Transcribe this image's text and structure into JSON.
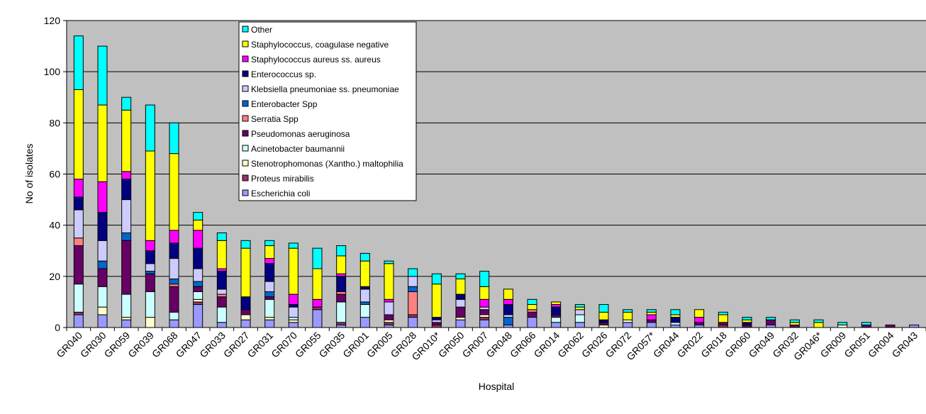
{
  "chart_data": {
    "type": "bar",
    "stacked": true,
    "xlabel": "Hospital",
    "ylabel": "No of isolates",
    "ylim": [
      0,
      120
    ],
    "yticks": [
      0,
      20,
      40,
      60,
      80,
      100,
      120
    ],
    "grid": true,
    "legend_position": "top-center",
    "categories": [
      "GR040",
      "GR030",
      "GR059",
      "GR039",
      "GR068",
      "GR047",
      "GR033",
      "GR027",
      "GR031",
      "GR070",
      "GR055",
      "GR035",
      "GR001",
      "GR005",
      "GR028",
      "GR010*",
      "GR050",
      "GR007",
      "GR048",
      "GR066",
      "GR014",
      "GR062",
      "GR026",
      "GR072",
      "GR057*",
      "GR044",
      "GR022",
      "GR018",
      "GR060",
      "GR049",
      "GR032",
      "GR046*",
      "GR009",
      "GR051",
      "GR004",
      "GR043"
    ],
    "series": [
      {
        "name": "Escherichia coli",
        "color": "#9999ff",
        "values": [
          5,
          5,
          3,
          0,
          3,
          9,
          2,
          3,
          3,
          2,
          7,
          1,
          4,
          1,
          4,
          0,
          3,
          3,
          1,
          4,
          2,
          2,
          0,
          2,
          2,
          1,
          1,
          0,
          0,
          1,
          0,
          0,
          0,
          0,
          0,
          1
        ]
      },
      {
        "name": "Proteus mirabilis",
        "color": "#993366",
        "values": [
          1,
          0,
          0,
          0,
          0,
          1,
          0,
          0,
          0,
          0,
          1,
          1,
          0,
          1,
          1,
          1,
          0,
          1,
          0,
          0,
          0,
          0,
          0,
          0,
          0,
          0,
          0,
          1,
          0,
          0,
          0,
          0,
          0,
          0,
          0,
          0
        ]
      },
      {
        "name": "Stenotrophomonas (Xantho.) maltophilia",
        "color": "#ffffcc",
        "values": [
          0,
          3,
          1,
          4,
          0,
          1,
          0,
          2,
          1,
          1,
          0,
          0,
          0,
          1,
          0,
          0,
          1,
          1,
          0,
          0,
          0,
          0,
          1,
          1,
          0,
          0,
          0,
          0,
          0,
          0,
          0,
          0,
          1,
          0,
          0,
          0
        ]
      },
      {
        "name": "Acinetobacter baumannii",
        "color": "#ccffff",
        "values": [
          11,
          8,
          9,
          10,
          3,
          3,
          6,
          0,
          7,
          1,
          0,
          8,
          5,
          0,
          0,
          0,
          0,
          0,
          0,
          0,
          2,
          3,
          0,
          0,
          0,
          1,
          0,
          0,
          0,
          0,
          0,
          0,
          0,
          0,
          0,
          0
        ]
      },
      {
        "name": "Pseudomonas aeruginosa",
        "color": "#660066",
        "values": [
          15,
          7,
          21,
          7,
          10,
          2,
          4,
          2,
          1,
          0,
          0,
          3,
          0,
          2,
          0,
          1,
          4,
          2,
          0,
          2,
          1,
          0,
          1,
          0,
          1,
          0,
          1,
          1,
          1,
          2,
          1,
          0,
          0,
          1,
          1,
          0
        ]
      },
      {
        "name": "Serratia Spp",
        "color": "#ff8080",
        "values": [
          3,
          0,
          0,
          0,
          1,
          0,
          1,
          0,
          0,
          0,
          0,
          1,
          0,
          0,
          9,
          0,
          0,
          0,
          0,
          1,
          0,
          0,
          0,
          0,
          0,
          0,
          0,
          0,
          0,
          0,
          0,
          0,
          0,
          0,
          0,
          0
        ]
      },
      {
        "name": "Enterobacter Spp",
        "color": "#0066cc",
        "values": [
          0,
          3,
          3,
          1,
          2,
          2,
          0,
          0,
          2,
          0,
          0,
          0,
          1,
          0,
          2,
          0,
          0,
          0,
          3,
          0,
          0,
          0,
          0,
          0,
          0,
          0,
          0,
          0,
          0,
          0,
          0,
          0,
          0,
          0,
          0,
          0
        ]
      },
      {
        "name": "Klebsiella pneumoniae ss. pneumoniae",
        "color": "#ccccff",
        "values": [
          11,
          8,
          13,
          3,
          8,
          5,
          2,
          0,
          4,
          4,
          0,
          0,
          5,
          5,
          4,
          1,
          3,
          1,
          1,
          0,
          0,
          2,
          0,
          0,
          0,
          0,
          0,
          0,
          0,
          0,
          0,
          0,
          0,
          0,
          0,
          0
        ]
      },
      {
        "name": "Enterococcus sp.",
        "color": "#000080",
        "values": [
          5,
          11,
          8,
          5,
          6,
          8,
          7,
          5,
          7,
          1,
          0,
          6,
          1,
          0,
          0,
          1,
          2,
          0,
          4,
          0,
          3,
          0,
          1,
          0,
          0,
          2,
          0,
          0,
          1,
          0,
          0,
          0,
          0,
          0,
          0,
          0
        ]
      },
      {
        "name": "Staphylococcus aureus ss. aureus",
        "color": "#ff00ff",
        "values": [
          7,
          12,
          3,
          4,
          5,
          7,
          1,
          0,
          2,
          4,
          3,
          1,
          0,
          1,
          0,
          0,
          0,
          3,
          2,
          0,
          1,
          0,
          0,
          0,
          2,
          0,
          2,
          0,
          0,
          0,
          0,
          0,
          0,
          0,
          0,
          0
        ]
      },
      {
        "name": "Staphylococcus, coagulase negative",
        "color": "#ffff00",
        "values": [
          35,
          30,
          24,
          35,
          30,
          4,
          11,
          19,
          5,
          18,
          12,
          7,
          10,
          14,
          0,
          13,
          6,
          5,
          4,
          2,
          1,
          1,
          3,
          3,
          1,
          1,
          3,
          3,
          1,
          0,
          1,
          2,
          0,
          0,
          0,
          0
        ]
      },
      {
        "name": "Other",
        "color": "#00ffff",
        "values": [
          21,
          23,
          5,
          18,
          12,
          3,
          3,
          3,
          2,
          2,
          8,
          4,
          3,
          1,
          3,
          4,
          2,
          6,
          0,
          2,
          0,
          1,
          3,
          1,
          1,
          2,
          0,
          1,
          1,
          1,
          1,
          1,
          1,
          1,
          0,
          0
        ]
      }
    ]
  }
}
